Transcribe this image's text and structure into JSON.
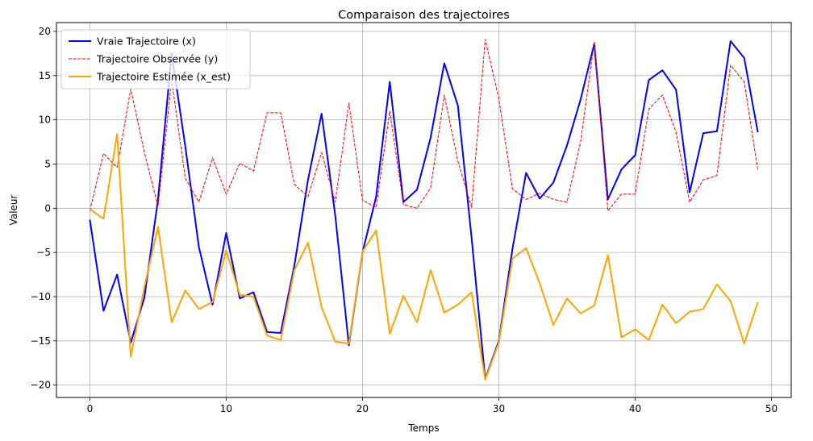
{
  "chart_data": {
    "type": "line",
    "title": "Comparaison des trajectoires",
    "xlabel": "Temps",
    "ylabel": "Valeur",
    "xlim": [
      -2.45,
      51.45
    ],
    "ylim": [
      -21.4,
      21.0
    ],
    "xticks": [
      0,
      10,
      20,
      30,
      40,
      50
    ],
    "yticks": [
      -20,
      -15,
      -10,
      -5,
      0,
      5,
      10,
      15,
      20
    ],
    "grid": true,
    "legend_position": "top-left",
    "x": [
      0,
      1,
      2,
      3,
      4,
      5,
      6,
      7,
      8,
      9,
      10,
      11,
      12,
      13,
      14,
      15,
      16,
      17,
      18,
      19,
      20,
      21,
      22,
      23,
      24,
      25,
      26,
      27,
      28,
      29,
      30,
      31,
      32,
      33,
      34,
      35,
      36,
      37,
      38,
      39,
      40,
      41,
      42,
      43,
      44,
      45,
      46,
      47,
      48,
      49
    ],
    "series": [
      {
        "name": "Vraie Trajectoire (x)",
        "color": "#0000ff",
        "style": "solid",
        "values": [
          -1.3,
          -11.6,
          -7.5,
          -15.2,
          -10.1,
          1.0,
          17.5,
          7.0,
          -4.4,
          -10.9,
          -2.8,
          -10.2,
          -9.5,
          -14.0,
          -14.1,
          -6.5,
          3.2,
          10.7,
          -0.8,
          -15.5,
          -5.0,
          1.3,
          14.3,
          0.7,
          2.1,
          8.0,
          16.4,
          11.6,
          -3.3,
          -19.3,
          -15.0,
          -4.6,
          4.0,
          1.1,
          2.9,
          7.1,
          12.3,
          18.6,
          1.0,
          4.4,
          6.0,
          14.5,
          15.6,
          13.4,
          1.8,
          8.5,
          8.7,
          18.9,
          17.0,
          8.6
        ]
      },
      {
        "name": "Trajectoire Observée (y)",
        "color": "#ff0000",
        "style": "dashed",
        "values": [
          -0.3,
          6.2,
          4.6,
          13.5,
          6.3,
          0.2,
          14.5,
          3.4,
          0.7,
          5.7,
          1.6,
          5.1,
          4.2,
          10.8,
          10.8,
          2.7,
          1.3,
          6.3,
          0.7,
          11.9,
          0.9,
          0.1,
          11.0,
          0.4,
          0.0,
          2.3,
          12.8,
          5.3,
          0.1,
          19.1,
          12.4,
          2.2,
          1.0,
          1.7,
          1.0,
          0.7,
          7.5,
          18.8,
          -0.3,
          1.6,
          1.6,
          11.2,
          12.8,
          8.6,
          0.7,
          3.2,
          3.7,
          16.2,
          14.3,
          4.3
        ]
      },
      {
        "name": "Trajectoire Estimée (x_est)",
        "color": "#ffa500",
        "style": "solid",
        "values": [
          -0.1,
          -1.2,
          8.4,
          -16.8,
          -8.9,
          -2.1,
          -12.9,
          -9.3,
          -11.4,
          -10.6,
          -4.8,
          -9.8,
          -10.0,
          -14.4,
          -14.9,
          -7.0,
          -3.9,
          -11.2,
          -15.1,
          -15.3,
          -4.9,
          -2.5,
          -14.2,
          -9.9,
          -12.9,
          -7.0,
          -11.8,
          -10.9,
          -9.5,
          -19.4,
          -15.2,
          -5.7,
          -4.5,
          -8.5,
          -13.2,
          -10.2,
          -11.9,
          -11.0,
          -5.3,
          -14.6,
          -13.7,
          -14.9,
          -10.9,
          -13.0,
          -11.7,
          -11.4,
          -8.6,
          -10.5,
          -15.3,
          -10.6
        ]
      }
    ]
  }
}
